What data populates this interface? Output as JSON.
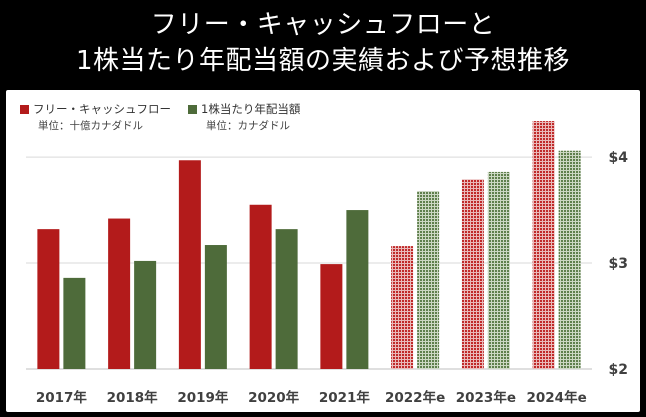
{
  "title_lines": [
    "フリー・キャッシュフローと",
    "1株当たり年配当額の実績および予想推移"
  ],
  "colors": {
    "fcf": "#b31b1b",
    "dividend": "#4e6b3a",
    "fcf_forecast": "#c73a3a",
    "dividend_forecast": "#6f8f5c",
    "grid": "#d9d9d9",
    "axis_label": "#404040"
  },
  "legend": [
    {
      "label": "フリー・キャッシュフロー",
      "unit": "単位：十億カナダドル",
      "color": "#b31b1b"
    },
    {
      "label": "1株当たり年配当額",
      "unit": "単位：カナダドル",
      "color": "#4e6b3a"
    }
  ],
  "chart_data": {
    "type": "bar",
    "title": "フリー・キャッシュフローと1株当たり年配当額の実績および予想推移",
    "categories": [
      "2017年",
      "2018年",
      "2019年",
      "2020年",
      "2021年",
      "2022年e",
      "2023年e",
      "2024年e"
    ],
    "forecast_categories": [
      "2022年e",
      "2023年e",
      "2024年e"
    ],
    "series": [
      {
        "name": "フリー・キャッシュフロー",
        "unit": "十億カナダドル",
        "values": [
          3.32,
          3.42,
          3.97,
          3.55,
          2.99,
          3.16,
          3.79,
          4.34
        ]
      },
      {
        "name": "1株当たり年配当額",
        "unit": "カナダドル",
        "values": [
          2.86,
          3.02,
          3.17,
          3.32,
          3.5,
          3.68,
          3.86,
          4.06
        ]
      }
    ],
    "y_axis": {
      "position": "right",
      "ylim": [
        2,
        4.35
      ],
      "ticks": [
        2,
        3,
        4
      ],
      "tick_labels": [
        "$2",
        "$3",
        "$4"
      ]
    },
    "grid": true,
    "legend_position": "top-left"
  }
}
